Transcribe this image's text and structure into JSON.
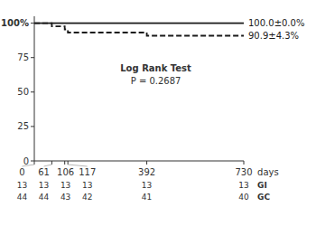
{
  "chart_data": {
    "type": "line",
    "x_label": "days",
    "grid": false,
    "xlim": [
      0,
      730
    ],
    "ylim": [
      0,
      105
    ],
    "xticks": [
      0,
      61,
      106,
      117,
      392,
      730
    ],
    "yticks": [
      0,
      25,
      50,
      75,
      {
        "value": 100,
        "label": "100%"
      }
    ],
    "series": [
      {
        "name": "100.0±0.0%",
        "type": "line",
        "line_style": "solid",
        "color": "#1a1a1a",
        "x": [
          0,
          730
        ],
        "values": [
          100,
          100
        ]
      },
      {
        "name": "90.9±4.3%",
        "type": "step",
        "line_style": "dashed",
        "color": "#1a1a1a",
        "x": [
          0,
          61,
          106,
          117,
          392,
          730
        ],
        "values": [
          100,
          97.7,
          95.5,
          93.2,
          90.9,
          90.9
        ]
      }
    ],
    "annotations": [
      "Log Rank Test",
      "P = 0.2687"
    ],
    "at_risk": [
      {
        "name": "GI",
        "values": [
          13,
          13,
          13,
          13,
          13,
          13
        ]
      },
      {
        "name": "GC",
        "values": [
          44,
          44,
          43,
          42,
          41,
          40
        ]
      }
    ]
  }
}
